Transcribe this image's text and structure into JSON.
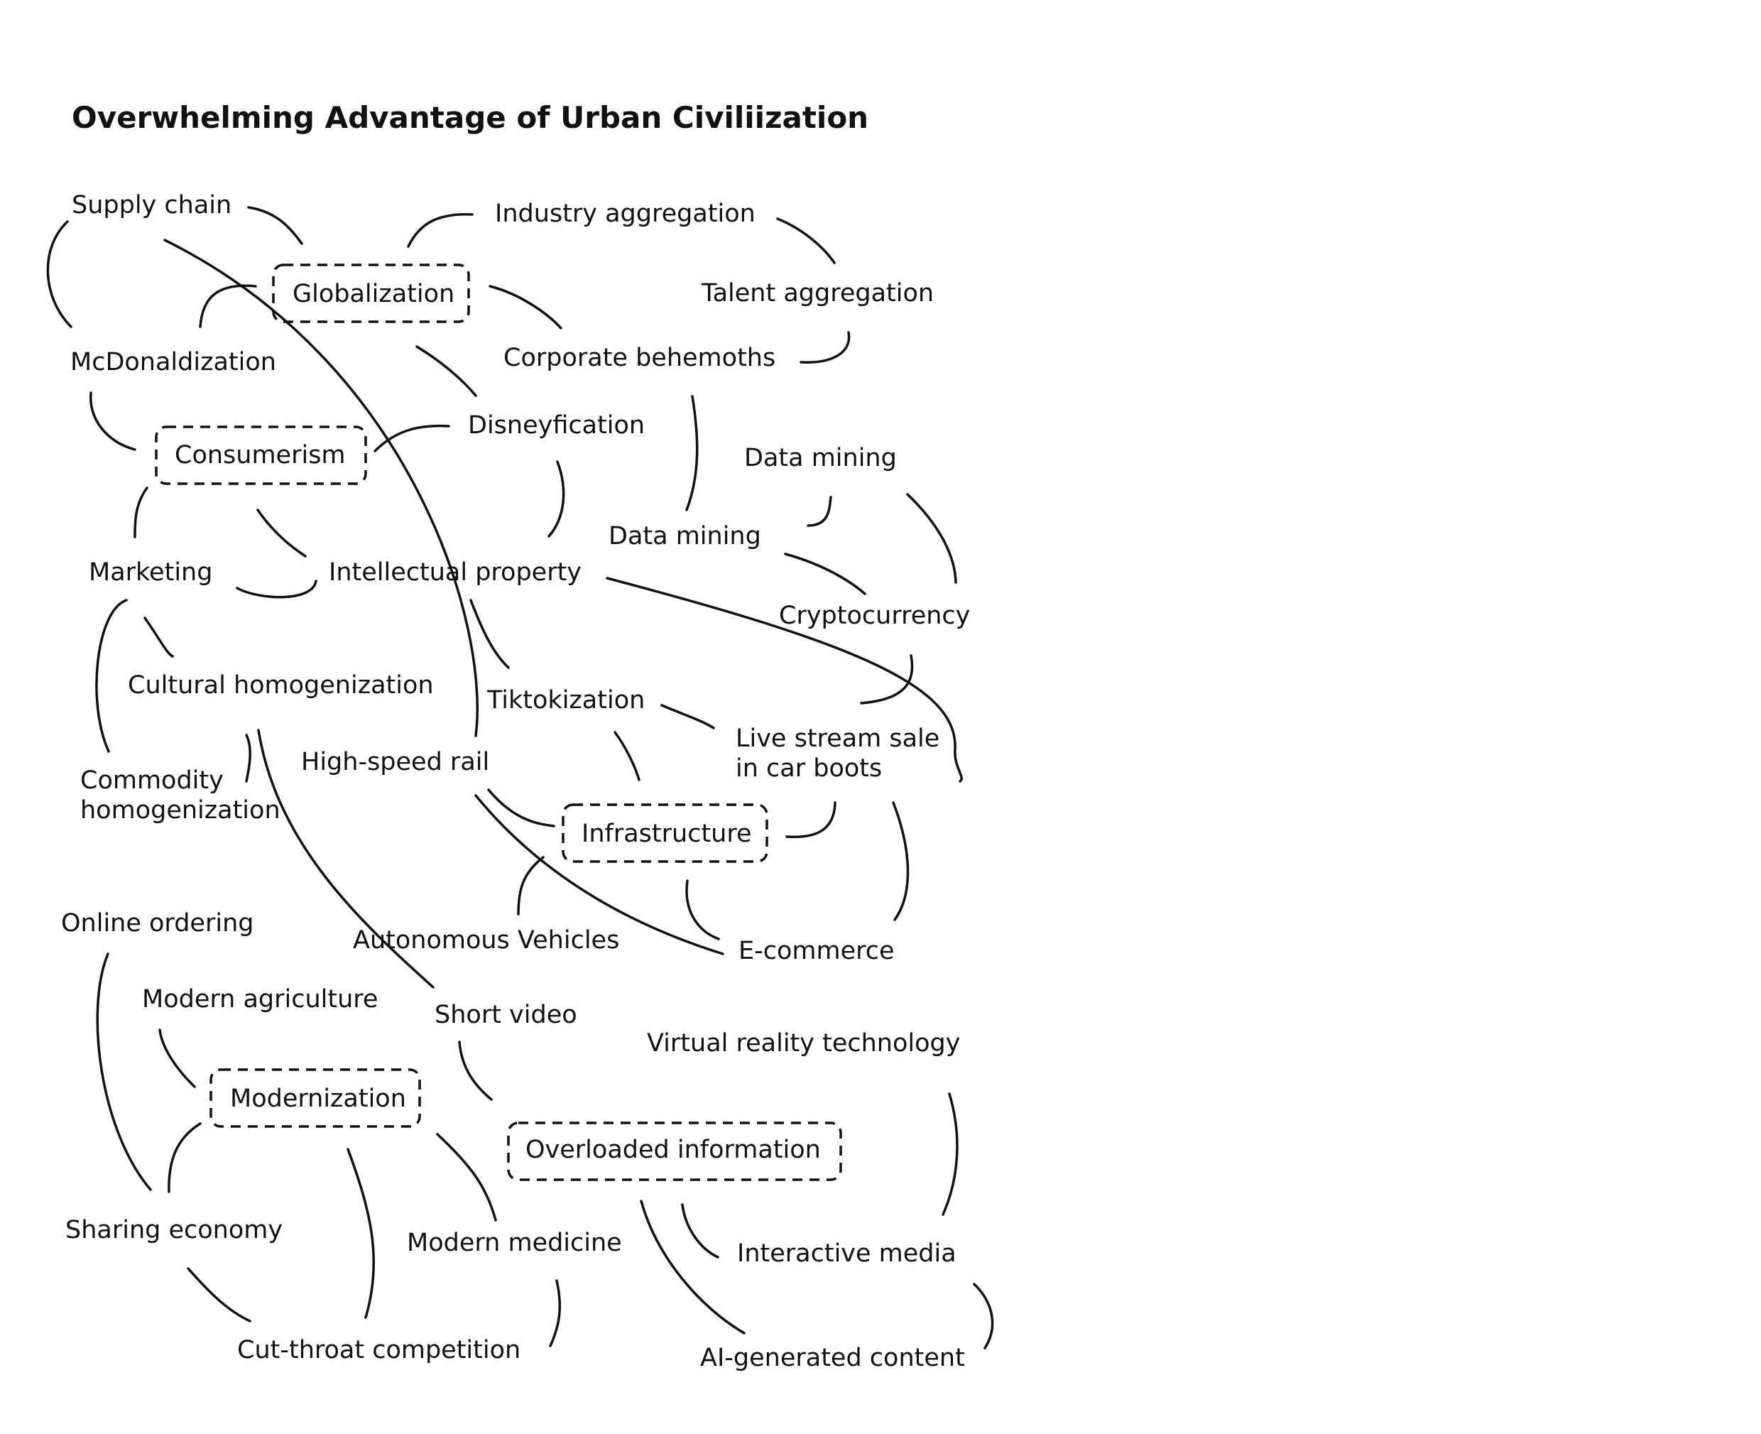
{
  "title": "Overwhelming Advantage of Urban Civiliization",
  "hubs": {
    "globalization": "Globalization",
    "consumerism": "Consumerism",
    "infrastructure": "Infrastructure",
    "modernization": "Modernization",
    "overloaded_information": "Overloaded information"
  },
  "terms": {
    "supply_chain": "Supply chain",
    "industry_aggregation": "Industry aggregation",
    "talent_aggregation": "Talent aggregation",
    "mcdonaldization": "McDonaldization",
    "corporate_behemoths": "Corporate behemoths",
    "disneyfication": "Disneyfication",
    "data_mining_upper": "Data mining",
    "data_mining_lower": "Data mining",
    "marketing": "Marketing",
    "intellectual_property": "Intellectual property",
    "cryptocurrency": "Cryptocurrency",
    "cultural_homogenization": "Cultural homogenization",
    "tiktokization": "Tiktokization",
    "live_stream_line1": "Live stream sale",
    "live_stream_line2": "in car boots",
    "high_speed_rail": "High-speed rail",
    "commodity_line1": "Commodity",
    "commodity_line2": "homogenization",
    "online_ordering": "Online ordering",
    "autonomous_vehicles": "Autonomous Vehicles",
    "e_commerce": "E-commerce",
    "modern_agriculture": "Modern agriculture",
    "short_video": "Short video",
    "virtual_reality": "Virtual reality technology",
    "sharing_economy": "Sharing economy",
    "modern_medicine": "Modern medicine",
    "interactive_media": "Interactive media",
    "cut_throat_competition": "Cut-throat competition",
    "ai_generated_content": "AI-generated content"
  }
}
